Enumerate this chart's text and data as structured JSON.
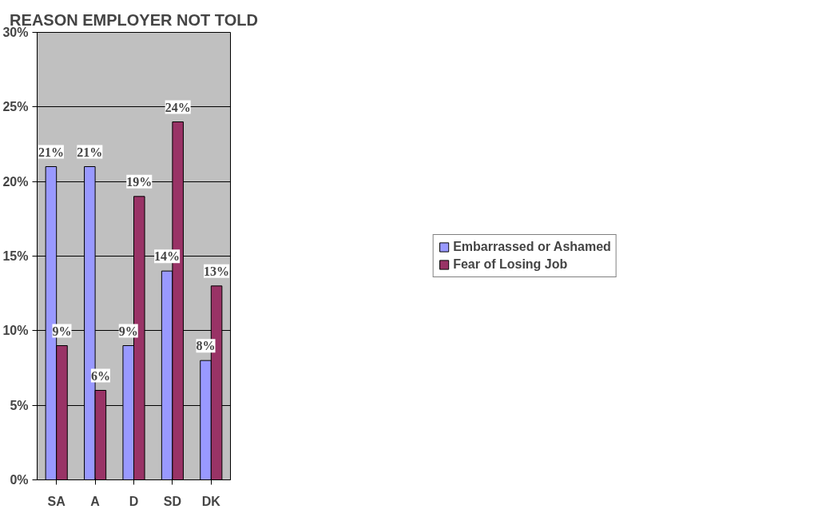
{
  "chart_data": {
    "type": "bar",
    "title": "REASON EMPLOYER NOT TOLD",
    "categories": [
      "SA",
      "A",
      "D",
      "SD",
      "DK"
    ],
    "series": [
      {
        "name": "Embarrassed or Ashamed",
        "color": "#9999ff",
        "values": [
          21,
          21,
          9,
          14,
          8
        ],
        "value_labels": [
          "21%",
          "21%",
          "9%",
          "14%",
          "8%"
        ]
      },
      {
        "name": "Fear of Losing Job",
        "color": "#993366",
        "values": [
          9,
          6,
          19,
          24,
          13
        ],
        "value_labels": [
          "9%",
          "6%",
          "19%",
          "24%",
          "13%"
        ]
      }
    ],
    "ylim": [
      0,
      30
    ],
    "yticks": [
      {
        "value": 0,
        "label": "0%"
      },
      {
        "value": 5,
        "label": "5%"
      },
      {
        "value": 10,
        "label": "10%"
      },
      {
        "value": 15,
        "label": "15%"
      },
      {
        "value": 20,
        "label": "20%"
      },
      {
        "value": 25,
        "label": "25%"
      },
      {
        "value": 30,
        "label": "30%"
      }
    ],
    "grid": "y",
    "legend": "right"
  }
}
